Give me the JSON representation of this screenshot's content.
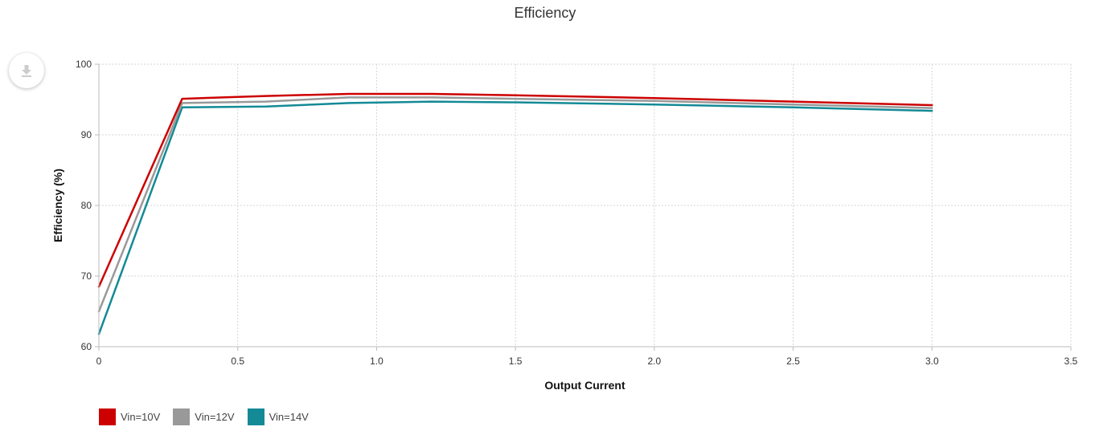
{
  "chart_title": "Efficiency",
  "download_icon": "download-icon",
  "chart_data": {
    "type": "line",
    "title": "Efficiency",
    "xlabel": "Output Current",
    "ylabel": "Efficiency (%)",
    "xlim": [
      0,
      3.5
    ],
    "ylim": [
      60,
      100
    ],
    "xticks": [
      "0",
      "0.5",
      "1.0",
      "1.5",
      "2.0",
      "2.5",
      "3.0",
      "3.5"
    ],
    "xtick_values": [
      0,
      0.5,
      1.0,
      1.5,
      2.0,
      2.5,
      3.0,
      3.5
    ],
    "yticks": [
      "60",
      "70",
      "80",
      "90",
      "100"
    ],
    "ytick_values": [
      60,
      70,
      80,
      90,
      100
    ],
    "grid": true,
    "legend_position": "bottom-left",
    "x": [
      0,
      0.3,
      0.6,
      0.9,
      1.2,
      1.5,
      2.0,
      2.5,
      3.0
    ],
    "series": [
      {
        "name": "Vin=10V",
        "color": "#cc0000",
        "values": [
          68.5,
          95.1,
          95.5,
          95.8,
          95.8,
          95.6,
          95.2,
          94.7,
          94.2
        ]
      },
      {
        "name": "Vin=12V",
        "color": "#999999",
        "values": [
          65.0,
          94.5,
          94.7,
          95.3,
          95.3,
          95.1,
          94.8,
          94.3,
          93.8
        ]
      },
      {
        "name": "Vin=14V",
        "color": "#138a96",
        "values": [
          61.8,
          93.9,
          94.0,
          94.5,
          94.7,
          94.6,
          94.3,
          93.9,
          93.4
        ]
      }
    ]
  }
}
